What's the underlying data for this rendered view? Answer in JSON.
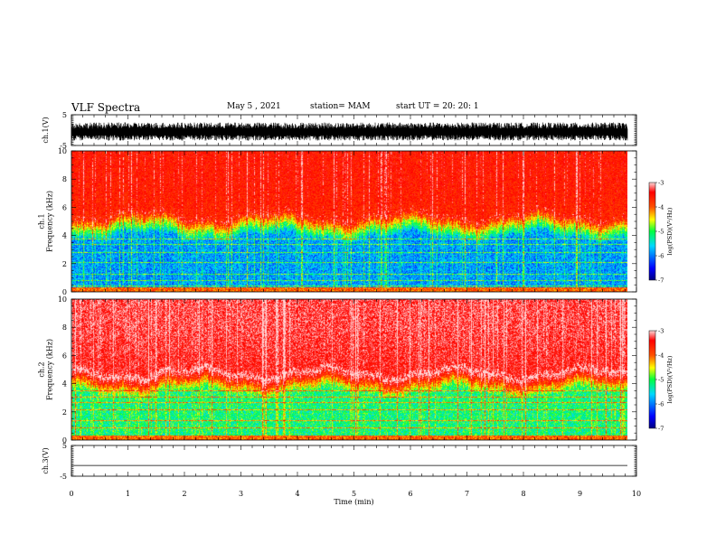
{
  "header": {
    "title": "VLF Spectra",
    "date": "May 5  , 2021",
    "station": "station= MAM",
    "start": "start  UT  =   20: 20: 1"
  },
  "chart_data": [
    {
      "id": "ch1-waveform",
      "type": "line",
      "ylabel": "ch.1(V)",
      "ylim": [
        -5,
        5
      ],
      "y_ticks": [
        "5",
        "-5"
      ],
      "xlim": [
        0,
        10
      ],
      "description_values": {
        "baseline": 0,
        "noise_band": [
          -3.5,
          2.5
        ]
      }
    },
    {
      "id": "ch1-spectrogram",
      "type": "heatmap",
      "ylabel": "ch.1 Frequency (kHz)",
      "ylabel_lines": [
        "ch.1",
        "Frequency  (kHz)"
      ],
      "ylim": [
        0,
        10
      ],
      "y_ticks": [
        "0",
        "2",
        "4",
        "6",
        "8",
        "10"
      ],
      "xlim": [
        0,
        9.85
      ],
      "colorbar": {
        "label": "log(PSD)(V²/Hz)",
        "range": [
          -7,
          -3
        ],
        "ticks": [
          "-3",
          "-4",
          "-5",
          "-6",
          "-7"
        ]
      },
      "bands_khz": {
        "low_blue": [
          0.5,
          4.0
        ],
        "transition_green": [
          4.0,
          5.0
        ],
        "high_red": [
          5.5,
          10
        ]
      }
    },
    {
      "id": "ch2-spectrogram",
      "type": "heatmap",
      "ylabel": "ch.2 Frequency (kHz)",
      "ylabel_lines": [
        "ch.2",
        "Frequency  (kHz)"
      ],
      "ylim": [
        0,
        10
      ],
      "y_ticks": [
        "0",
        "2",
        "4",
        "6",
        "8",
        "10"
      ],
      "xlim": [
        0,
        9.85
      ],
      "colorbar": {
        "label": "log(PSD)(V²/Hz)",
        "range": [
          -7,
          -3
        ],
        "ticks": [
          "-3",
          "-4",
          "-5",
          "-6",
          "-7"
        ]
      },
      "bands_khz": {
        "low_cyan": [
          0.5,
          3.5
        ],
        "transition_green": [
          3.5,
          4.5
        ],
        "high_red": [
          4.5,
          10
        ]
      }
    },
    {
      "id": "ch3-waveform",
      "type": "line",
      "ylabel": "ch.3(V)",
      "ylim": [
        -5,
        5
      ],
      "y_ticks": [
        "5",
        "-5"
      ],
      "xlim": [
        0,
        10
      ],
      "description_values": {
        "baseline": -1.5
      }
    }
  ],
  "x_axis": {
    "label": "Time  (min)",
    "range": [
      0,
      10
    ],
    "ticks": [
      "0",
      "1",
      "2",
      "3",
      "4",
      "5",
      "6",
      "7",
      "8",
      "9",
      "10"
    ]
  }
}
